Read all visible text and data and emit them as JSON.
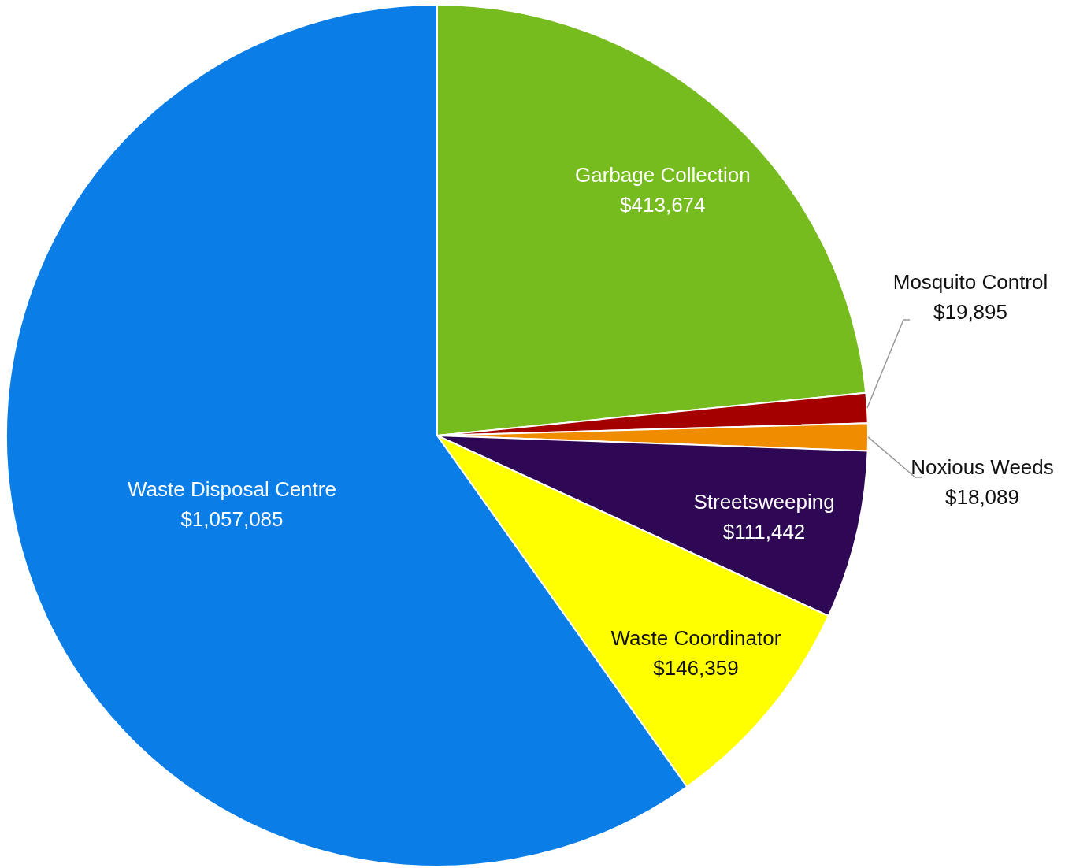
{
  "chart_data": {
    "type": "pie",
    "categories": [
      "Garbage Collection",
      "Mosquito Control",
      "Noxious Weeds",
      "Streetsweeping",
      "Waste Coordinator",
      "Waste Disposal Centre"
    ],
    "values": [
      413674,
      19895,
      18089,
      111442,
      146359,
      1057085
    ],
    "value_labels": [
      "$413,674",
      "$19,895",
      "$18,089",
      "$111,442",
      "$146,359",
      "$1,057,085"
    ],
    "colors": [
      "#77bc1f",
      "#a50000",
      "#f08c00",
      "#2e0854",
      "#ffff00",
      "#0a7ee6"
    ]
  }
}
